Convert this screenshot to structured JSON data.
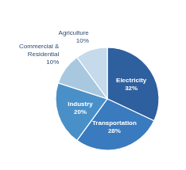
{
  "chart_data": {
    "type": "pie",
    "categories": [
      "Electricity",
      "Transportation",
      "Industry",
      "Commercial &\nResidential",
      "Agriculture"
    ],
    "values": [
      32,
      28,
      20,
      10,
      10
    ],
    "value_labels": [
      "32%",
      "28%",
      "20%",
      "10%",
      "10%"
    ],
    "colors": [
      "#2e5f9e",
      "#3a7abf",
      "#4a90c8",
      "#a8c8e0",
      "#c5daea"
    ],
    "data_labels": true
  }
}
